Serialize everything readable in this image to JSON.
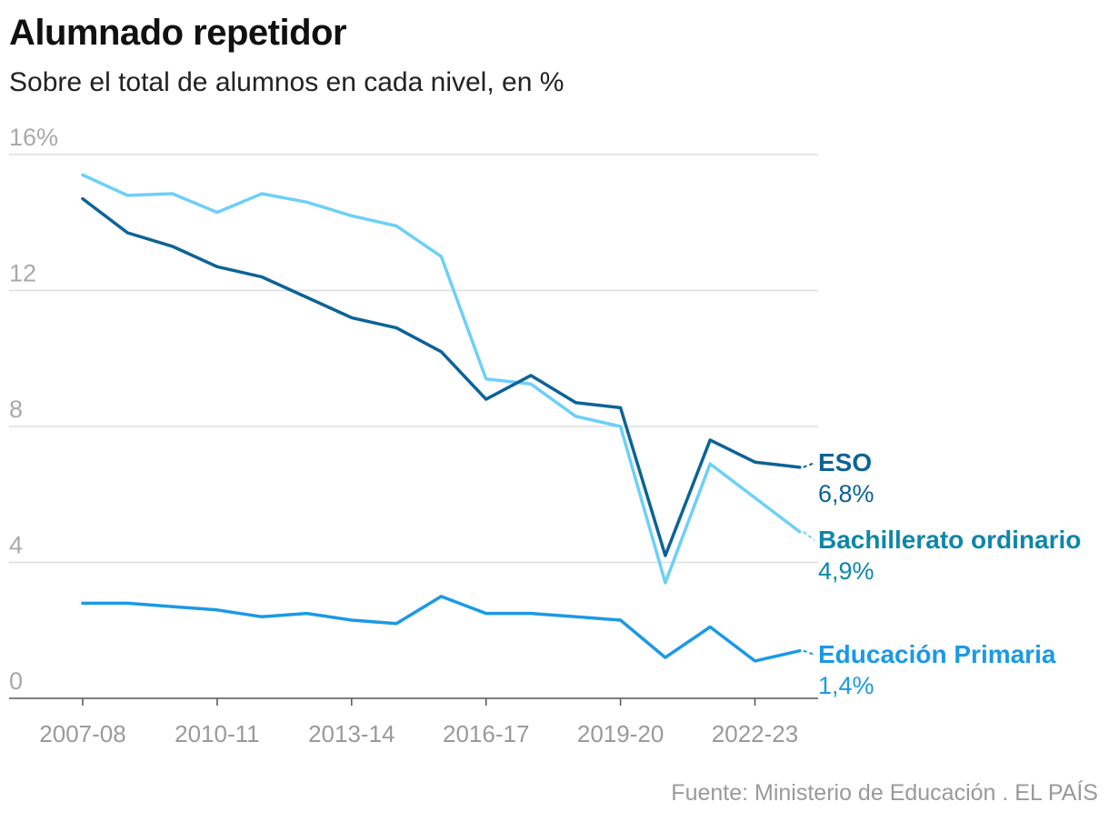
{
  "header": {
    "title": "Alumnado repetidor",
    "subtitle": "Sobre el total de alumnos en cada nivel, en %"
  },
  "footer": {
    "source": "Fuente: Ministerio de Educación . EL PAÍS"
  },
  "chart_data": {
    "type": "line",
    "title": "Alumnado repetidor",
    "subtitle": "Sobre el total de alumnos en cada nivel, en %",
    "xlabel": "",
    "ylabel": "",
    "x": [
      "2007-08",
      "2008-09",
      "2009-10",
      "2010-11",
      "2011-12",
      "2012-13",
      "2013-14",
      "2014-15",
      "2015-16",
      "2016-17",
      "2017-18",
      "2018-19",
      "2019-20",
      "2020-21",
      "2021-22",
      "2022-23",
      "2023-24"
    ],
    "x_tick_labels": [
      "2007-08",
      "2010-11",
      "2013-14",
      "2016-17",
      "2019-20",
      "2022-23"
    ],
    "y_tick_labels": [
      "16%",
      "12",
      "8",
      "4",
      "0"
    ],
    "y_ticks": [
      16,
      12,
      8,
      4,
      0
    ],
    "ylim": [
      0,
      16
    ],
    "grid": true,
    "series": [
      {
        "name": "ESO",
        "end_label": "6,8%",
        "color": "#0c6396",
        "label_color": "#0c6396",
        "values": [
          14.7,
          13.7,
          13.3,
          12.7,
          12.4,
          11.8,
          11.2,
          10.9,
          10.2,
          8.8,
          9.5,
          8.7,
          8.55,
          4.2,
          7.6,
          6.95,
          6.8
        ]
      },
      {
        "name": "Bachillerato ordinario",
        "end_label": "4,9%",
        "color": "#6dd0f7",
        "label_color": "#0f86a8",
        "values": [
          15.4,
          14.8,
          14.85,
          14.3,
          14.85,
          14.6,
          14.2,
          13.9,
          13.0,
          9.4,
          9.25,
          8.3,
          8.0,
          3.4,
          6.9,
          5.9,
          4.9
        ]
      },
      {
        "name": "Educación Primaria",
        "end_label": "1,4%",
        "color": "#1b99e6",
        "label_color": "#1b99e6",
        "values": [
          2.8,
          2.8,
          2.7,
          2.6,
          2.4,
          2.5,
          2.3,
          2.2,
          3.0,
          2.5,
          2.5,
          2.4,
          2.3,
          1.2,
          2.1,
          1.1,
          1.4
        ]
      }
    ]
  }
}
